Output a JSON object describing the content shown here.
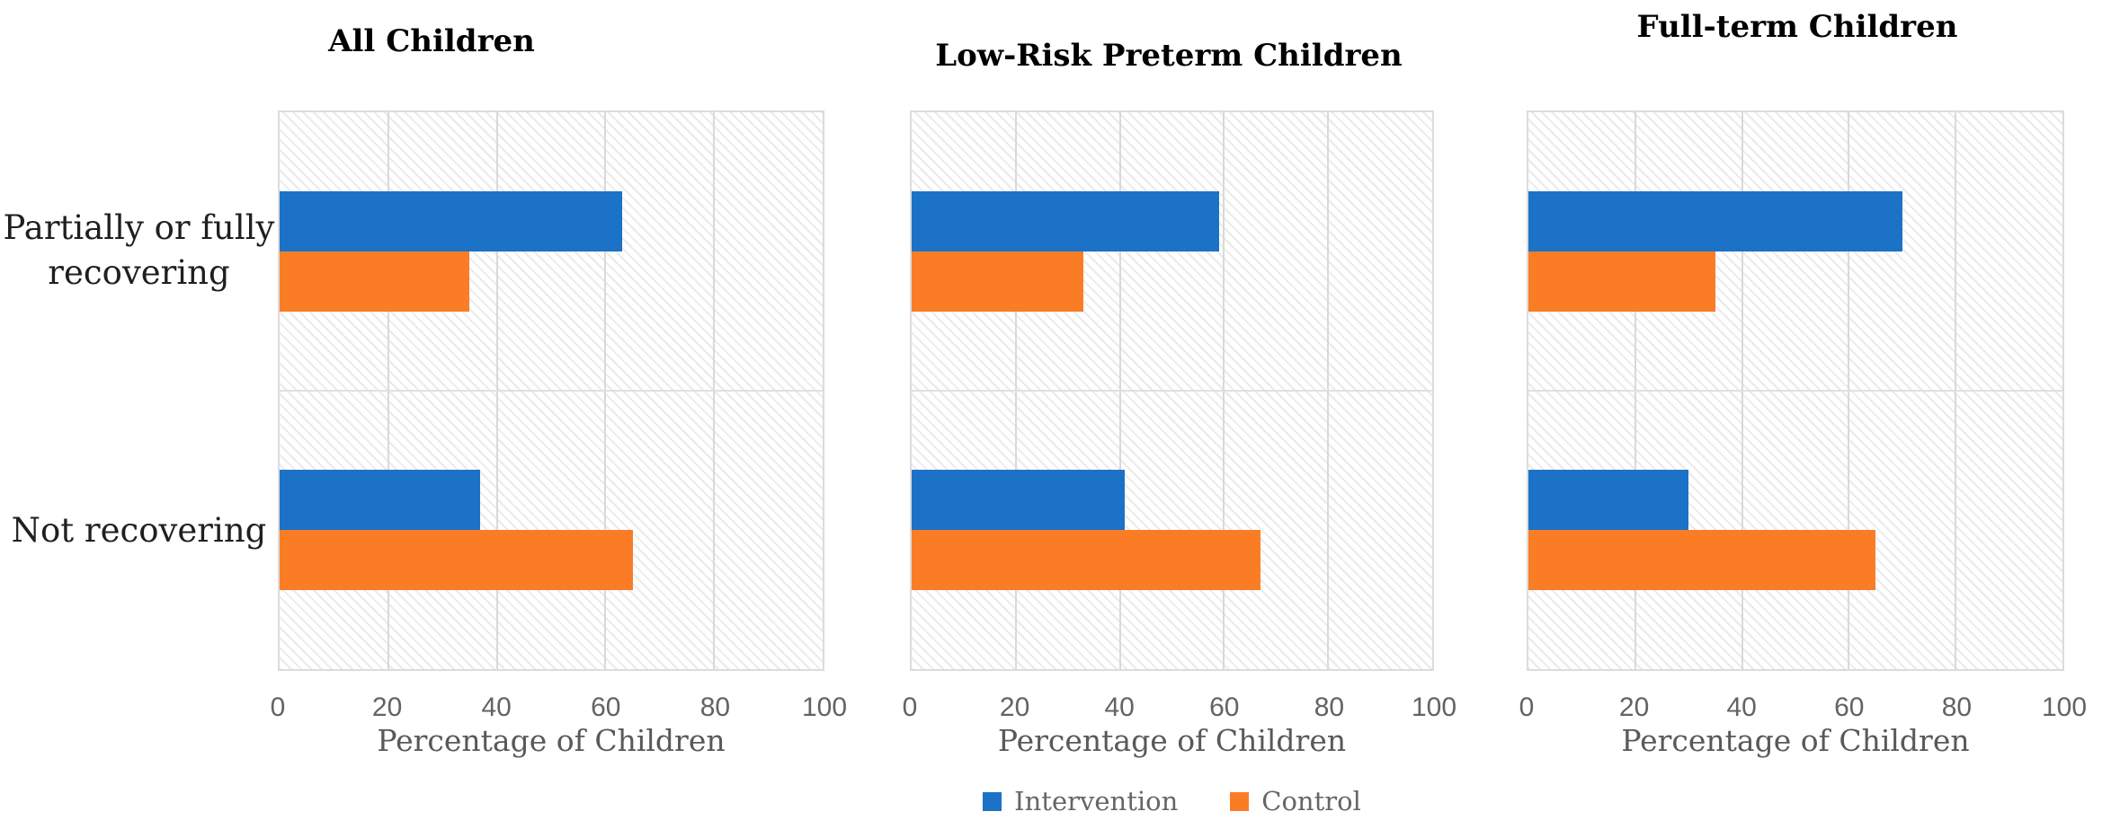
{
  "chart_data": {
    "type": "bar",
    "orientation": "horizontal",
    "xlabel": "Percentage of Children",
    "xlim": [
      0,
      100
    ],
    "x_ticks": [
      0,
      20,
      40,
      60,
      80,
      100
    ],
    "grid": "vertical-at-ticks-plus-category-divider",
    "plot_background": "light-diagonal-hatch",
    "categories": [
      "Partially or fully recovering",
      "Not recovering"
    ],
    "series_names": [
      "Intervention",
      "Control"
    ],
    "series_colors": [
      "#1B72C7",
      "#FA7D26"
    ],
    "gridline_color": "#D9D9D9",
    "legend": {
      "position": "bottom-center",
      "entries": [
        "Intervention",
        "Control"
      ]
    },
    "panels": [
      {
        "title": "All Children",
        "series": [
          {
            "name": "Intervention",
            "values": [
              63,
              37
            ]
          },
          {
            "name": "Control",
            "values": [
              35,
              65
            ]
          }
        ]
      },
      {
        "title": "Low-Risk Preterm Children",
        "series": [
          {
            "name": "Intervention",
            "values": [
              59,
              41
            ]
          },
          {
            "name": "Control",
            "values": [
              33,
              67
            ]
          }
        ]
      },
      {
        "title": "Full-term Children",
        "series": [
          {
            "name": "Intervention",
            "values": [
              70,
              30
            ]
          },
          {
            "name": "Control",
            "values": [
              35,
              65
            ]
          }
        ]
      }
    ]
  }
}
